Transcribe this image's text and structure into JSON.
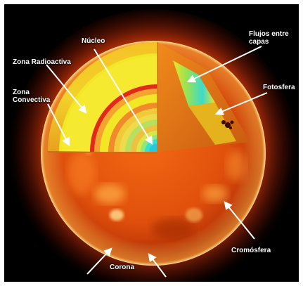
{
  "figure": {
    "labels": {
      "nucleo": "Núcleo",
      "zona_radioactiva": "Zona Radioactiva",
      "zona_convectiva": "Zona\nConvectiva",
      "flujos_entre_capas": "Flujos entre\ncapas",
      "fotosfera": "Fotosfera",
      "cromosfera": "Cromósfera",
      "corona": "Corona"
    },
    "colors": {
      "background": "#000000",
      "sun_orange": "#e8560e",
      "radiative_yellow": "#f2e626",
      "core_cyan": "#33e0d6",
      "arrow": "#ffffff",
      "label_text": "#ffffff"
    }
  }
}
